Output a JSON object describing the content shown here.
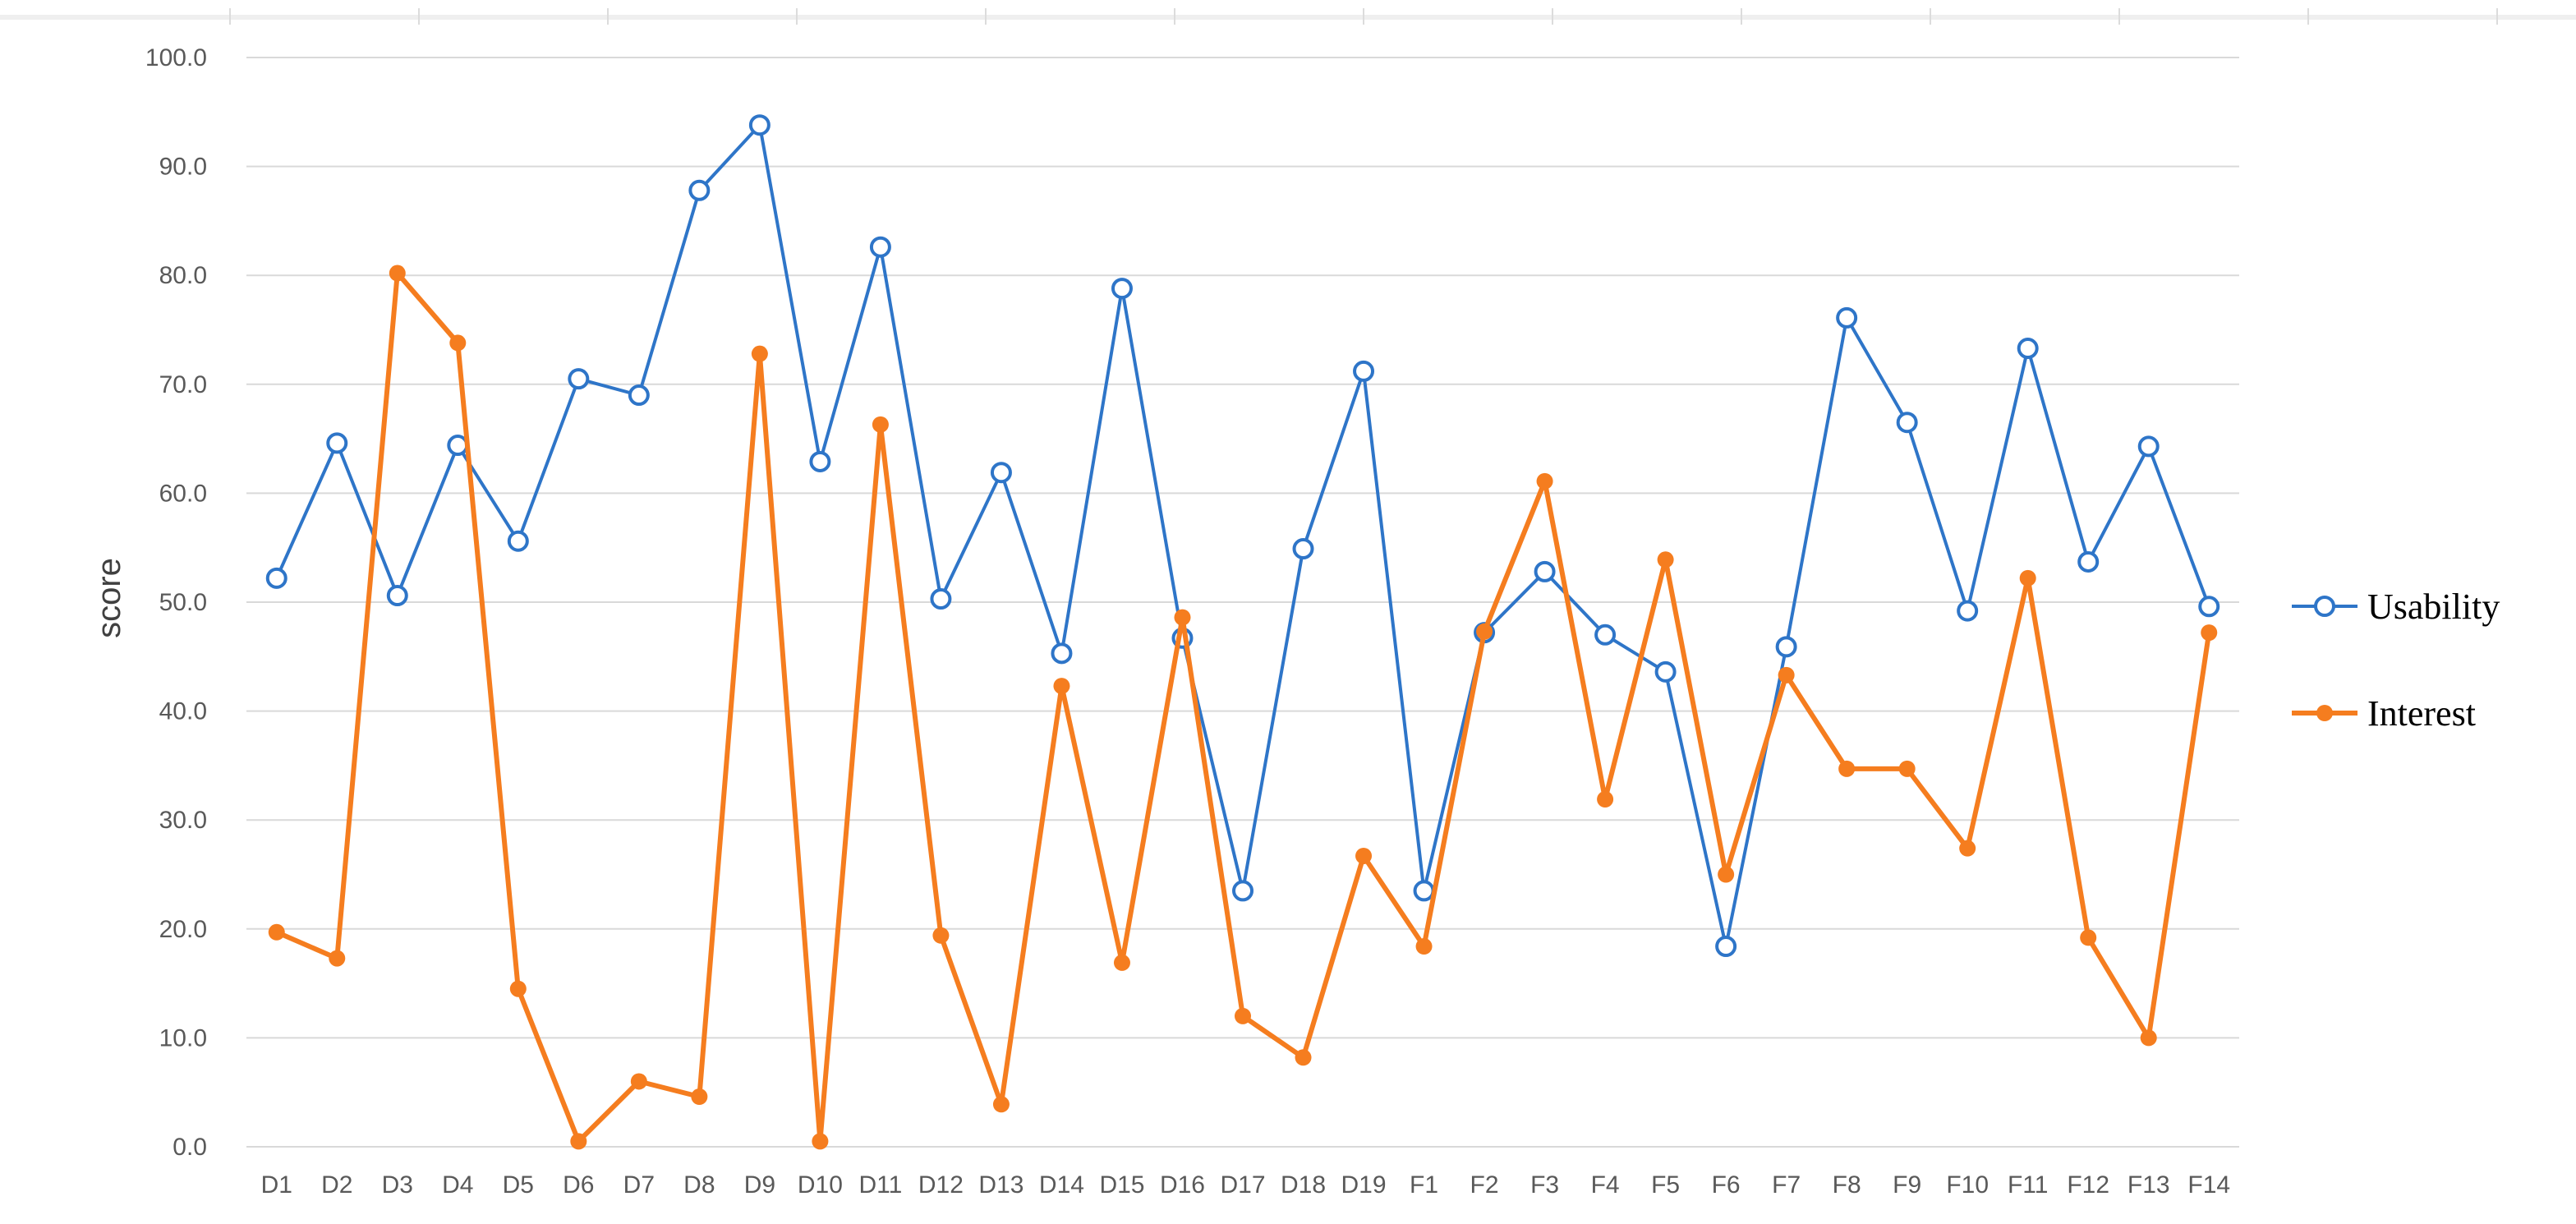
{
  "chart_data": {
    "type": "line",
    "title": "",
    "xlabel": "",
    "ylabel": "score",
    "ylim": [
      0,
      100
    ],
    "yticks": [
      "0.0",
      "10.0",
      "20.0",
      "30.0",
      "40.0",
      "50.0",
      "60.0",
      "70.0",
      "80.0",
      "90.0",
      "100.0"
    ],
    "grid": "horizontal",
    "legend_position": "right",
    "categories": [
      "D1",
      "D2",
      "D3",
      "D4",
      "D5",
      "D6",
      "D7",
      "D8",
      "D9",
      "D10",
      "D11",
      "D12",
      "D13",
      "D14",
      "D15",
      "D16",
      "D17",
      "D18",
      "D19",
      "F1",
      "F2",
      "F3",
      "F4",
      "F5",
      "F6",
      "F7",
      "F8",
      "F9",
      "F10",
      "F11",
      "F12",
      "F13",
      "F14"
    ],
    "series": [
      {
        "name": "Usability",
        "color": "#2E75C8",
        "marker": "open-circle",
        "values": [
          52.2,
          64.6,
          50.6,
          64.4,
          55.6,
          70.5,
          69.0,
          87.8,
          93.8,
          62.9,
          82.6,
          50.3,
          61.9,
          45.3,
          78.8,
          46.7,
          23.5,
          54.9,
          71.2,
          23.5,
          47.2,
          52.8,
          47.0,
          43.6,
          18.4,
          45.9,
          76.1,
          66.5,
          49.2,
          73.3,
          53.7,
          64.3,
          49.6
        ]
      },
      {
        "name": "Interest",
        "color": "#F57D1F",
        "marker": "filled-circle",
        "values": [
          19.7,
          17.3,
          80.2,
          73.8,
          14.5,
          0.5,
          6.0,
          4.6,
          72.8,
          0.5,
          66.3,
          19.4,
          3.9,
          42.3,
          16.9,
          48.6,
          12.0,
          8.2,
          26.7,
          18.4,
          47.3,
          61.1,
          31.9,
          53.9,
          25.0,
          43.3,
          34.7,
          34.7,
          27.4,
          52.2,
          19.2,
          10.0,
          47.2
        ]
      }
    ]
  }
}
